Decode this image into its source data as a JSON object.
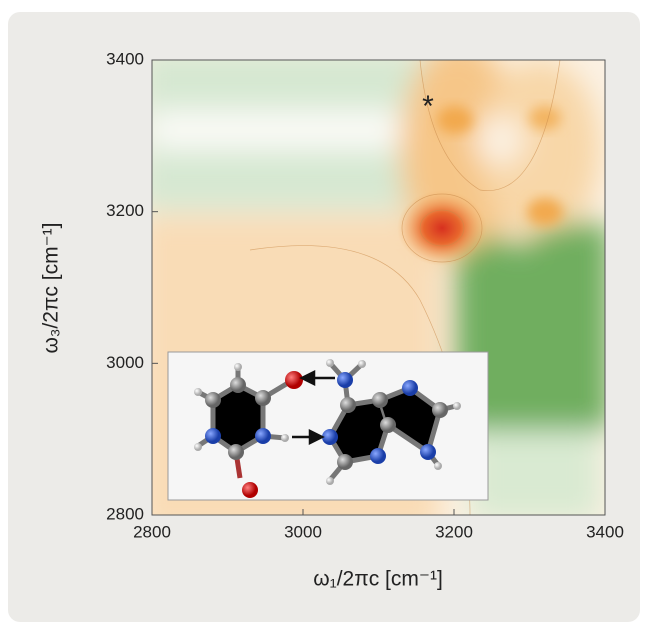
{
  "chart_data": {
    "type": "contour",
    "xlabel": "ω₁/2πc [cm⁻¹]",
    "ylabel": "ω₃/2πc [cm⁻¹]",
    "xlim": [
      2800,
      3400
    ],
    "ylim": [
      2800,
      3400
    ],
    "xticks": [
      2800,
      3000,
      3200,
      3400
    ],
    "yticks": [
      2800,
      3000,
      3200,
      3400
    ],
    "annotations": [
      "*"
    ]
  }
}
